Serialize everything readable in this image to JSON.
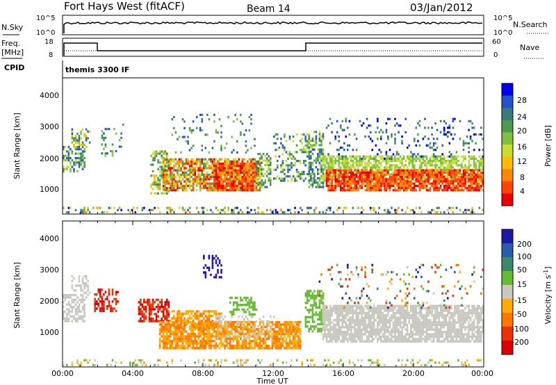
{
  "header": {
    "station": "Fort Hays West (fitACF)",
    "beam": "Beam 14",
    "date": "03/Jan/2012"
  },
  "top_panels": {
    "nsky_label": "N.Sky",
    "nsky_ticks": [
      "10^5",
      "10^0"
    ],
    "nsearch_label": "N.Search",
    "nsearch_ticks": [
      "10^5",
      "10^0"
    ],
    "freq_label_1": "Freq.",
    "freq_label_2": "[MHz]",
    "freq_ticks": [
      "18",
      "8"
    ],
    "nave_label": "Nave",
    "nave_ticks": [
      "60",
      "0"
    ],
    "cpid_label": "CPID",
    "cpid_value": "themis 3300 IF"
  },
  "chart_data": [
    {
      "type": "heatmap",
      "name": "power",
      "ylabel": "Slant Range [km]",
      "yticks": [
        "4000",
        "3000",
        "2000",
        "1000"
      ],
      "ylim": [
        180,
        4500
      ],
      "xlim": [
        0,
        24
      ],
      "colorbar_label": "Power [dB]",
      "colorbar_ticks": [
        "28",
        "24",
        "20",
        "16",
        "12",
        "8",
        "4"
      ],
      "colorbar_colors": [
        "#0000ee",
        "#2255cc",
        "#3a7a78",
        "#4a9a50",
        "#7ec040",
        "#c8dd30",
        "#ffbb00",
        "#ff8800",
        "#ff4400",
        "#ee0000"
      ]
    },
    {
      "type": "heatmap",
      "name": "velocity",
      "ylabel": "Slant Range [km]",
      "yticks": [
        "4000",
        "3000",
        "2000",
        "1000"
      ],
      "ylim": [
        180,
        4500
      ],
      "xlim": [
        0,
        24
      ],
      "colorbar_label": "Velocity [m s",
      "colorbar_label_sup": "-1",
      "colorbar_label_end": "]",
      "colorbar_ticks": [
        "200",
        "100",
        "50",
        "15",
        "-15",
        "-50",
        "-100",
        "-200"
      ],
      "colorbar_colors": [
        "#1a1aaa",
        "#2a5aaa",
        "#3a8a6a",
        "#66bb33",
        "#c8c8c0",
        "#ffaa00",
        "#ff7700",
        "#ee3300",
        "#dd0000"
      ]
    }
  ],
  "x_axis": {
    "ticks": [
      "00:00",
      "04:00",
      "08:00",
      "12:00",
      "16:00",
      "20:00",
      "00:00"
    ],
    "label": "Time UT"
  }
}
